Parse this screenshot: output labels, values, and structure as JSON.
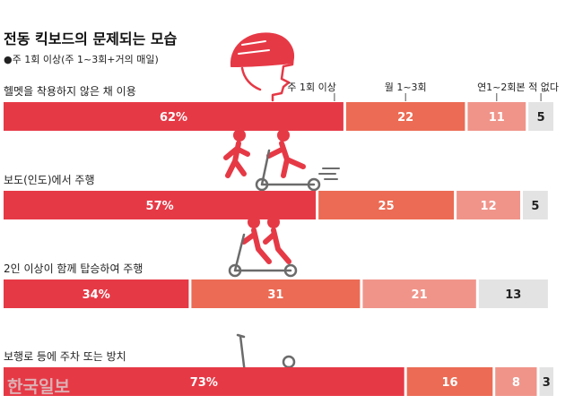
{
  "title": "전동 킥보드의 문제되는 모습",
  "subtitle": "●주 1회 이상(주 1~3회+거의 매일)",
  "colors": {
    "series": [
      "#e63946",
      "#ec6b54",
      "#f0948a",
      "#e3e3e3"
    ],
    "label_light": "#ffffff",
    "label_dark": "#222222",
    "illustration": "#e63946",
    "illustration_frame": "#6b6b6b",
    "title": "#111111",
    "text": "#222222"
  },
  "icons": [
    "helmet-head-icon",
    "pedestrian-and-scooter-rider-icon",
    "two-riders-on-scooter-icon",
    "parked-scooter-icon"
  ],
  "watermark": "한국일보",
  "chart_data": {
    "type": "bar",
    "orientation": "horizontal",
    "stacked": true,
    "unit": "%",
    "title": "전동 킥보드의 문제되는 모습",
    "subtitle": "●주 1회 이상(주 1~3회+거의 매일)",
    "categories": [
      "헬멧을 착용하지 않은 채 이용",
      "보도(인도)에서 주행",
      "2인 이상이 함께 탑승하여 주행",
      "보행로 등에 주차 또는 방치"
    ],
    "series": [
      {
        "name": "주 1회 이상",
        "values": [
          62,
          57,
          34,
          73
        ]
      },
      {
        "name": "월 1~3회",
        "values": [
          22,
          25,
          31,
          16
        ]
      },
      {
        "name": "연1~2회",
        "values": [
          11,
          12,
          21,
          8
        ]
      },
      {
        "name": "본 적 없다",
        "values": [
          5,
          5,
          13,
          3
        ]
      }
    ],
    "value_labels": [
      [
        "62%",
        "22",
        "11",
        "5"
      ],
      [
        "57%",
        "25",
        "12",
        "5"
      ],
      [
        "34%",
        "31",
        "21",
        "13"
      ],
      [
        "73%",
        "16",
        "8",
        "3"
      ]
    ],
    "legend": "inline labels above first bar",
    "xlim": [
      0,
      100
    ],
    "grid": false
  }
}
